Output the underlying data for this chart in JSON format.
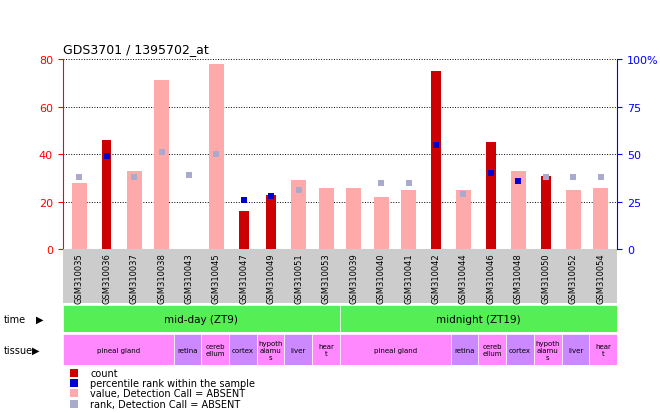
{
  "title": "GDS3701 / 1395702_at",
  "samples": [
    "GSM310035",
    "GSM310036",
    "GSM310037",
    "GSM310038",
    "GSM310043",
    "GSM310045",
    "GSM310047",
    "GSM310049",
    "GSM310051",
    "GSM310053",
    "GSM310039",
    "GSM310040",
    "GSM310041",
    "GSM310042",
    "GSM310044",
    "GSM310046",
    "GSM310048",
    "GSM310050",
    "GSM310052",
    "GSM310054"
  ],
  "count_values": [
    null,
    46,
    null,
    null,
    null,
    null,
    16,
    23,
    null,
    null,
    null,
    null,
    null,
    75,
    null,
    45,
    null,
    31,
    null,
    null
  ],
  "rank_values": [
    null,
    49,
    null,
    null,
    null,
    null,
    26,
    28,
    null,
    null,
    null,
    null,
    null,
    55,
    null,
    40,
    36,
    null,
    null,
    null
  ],
  "absent_value_values": [
    28,
    null,
    33,
    71,
    null,
    78,
    null,
    null,
    29,
    26,
    26,
    22,
    25,
    null,
    25,
    null,
    33,
    null,
    25,
    26
  ],
  "absent_rank_values": [
    38,
    null,
    38,
    51,
    39,
    50,
    null,
    null,
    31,
    null,
    null,
    35,
    35,
    null,
    29,
    null,
    null,
    38,
    38,
    38
  ],
  "ylim_left": [
    0,
    80
  ],
  "ylim_right": [
    0,
    100
  ],
  "yticks_left": [
    0,
    20,
    40,
    60,
    80
  ],
  "yticks_right": [
    0,
    25,
    50,
    75,
    100
  ],
  "color_count": "#cc0000",
  "color_rank": "#0000cc",
  "color_absent_value": "#ffaaaa",
  "color_absent_rank": "#aaaacc",
  "time_labels": [
    "mid-day (ZT9)",
    "midnight (ZT19)"
  ],
  "time_color": "#55ee55",
  "time_split": 10,
  "tissue_groups_1": [
    {
      "label": "pineal gland",
      "start": 0,
      "end": 4,
      "color": "#ff88ff"
    },
    {
      "label": "retina",
      "start": 4,
      "end": 5,
      "color": "#cc88ff"
    },
    {
      "label": "cereb\nellum",
      "start": 5,
      "end": 6,
      "color": "#ff88ff"
    },
    {
      "label": "cortex",
      "start": 6,
      "end": 7,
      "color": "#cc88ff"
    },
    {
      "label": "hypoth\nalamu\ns",
      "start": 7,
      "end": 8,
      "color": "#ff88ff"
    },
    {
      "label": "liver",
      "start": 8,
      "end": 9,
      "color": "#cc88ff"
    },
    {
      "label": "hear\nt",
      "start": 9,
      "end": 10,
      "color": "#ff88ff"
    }
  ],
  "tissue_groups_2": [
    {
      "label": "pineal gland",
      "start": 10,
      "end": 14,
      "color": "#ff88ff"
    },
    {
      "label": "retina",
      "start": 14,
      "end": 15,
      "color": "#cc88ff"
    },
    {
      "label": "cereb\nellum",
      "start": 15,
      "end": 16,
      "color": "#ff88ff"
    },
    {
      "label": "cortex",
      "start": 16,
      "end": 17,
      "color": "#cc88ff"
    },
    {
      "label": "hypoth\nalamu\ns",
      "start": 17,
      "end": 18,
      "color": "#ff88ff"
    },
    {
      "label": "liver",
      "start": 18,
      "end": 19,
      "color": "#cc88ff"
    },
    {
      "label": "hear\nt",
      "start": 19,
      "end": 20,
      "color": "#ff88ff"
    }
  ],
  "bg_color": "#ffffff",
  "tick_area_color": "#cccccc",
  "legend_items": [
    {
      "color": "#cc0000",
      "label": "count"
    },
    {
      "color": "#0000cc",
      "label": "percentile rank within the sample"
    },
    {
      "color": "#ffaaaa",
      "label": "value, Detection Call = ABSENT"
    },
    {
      "color": "#aaaacc",
      "label": "rank, Detection Call = ABSENT"
    }
  ]
}
